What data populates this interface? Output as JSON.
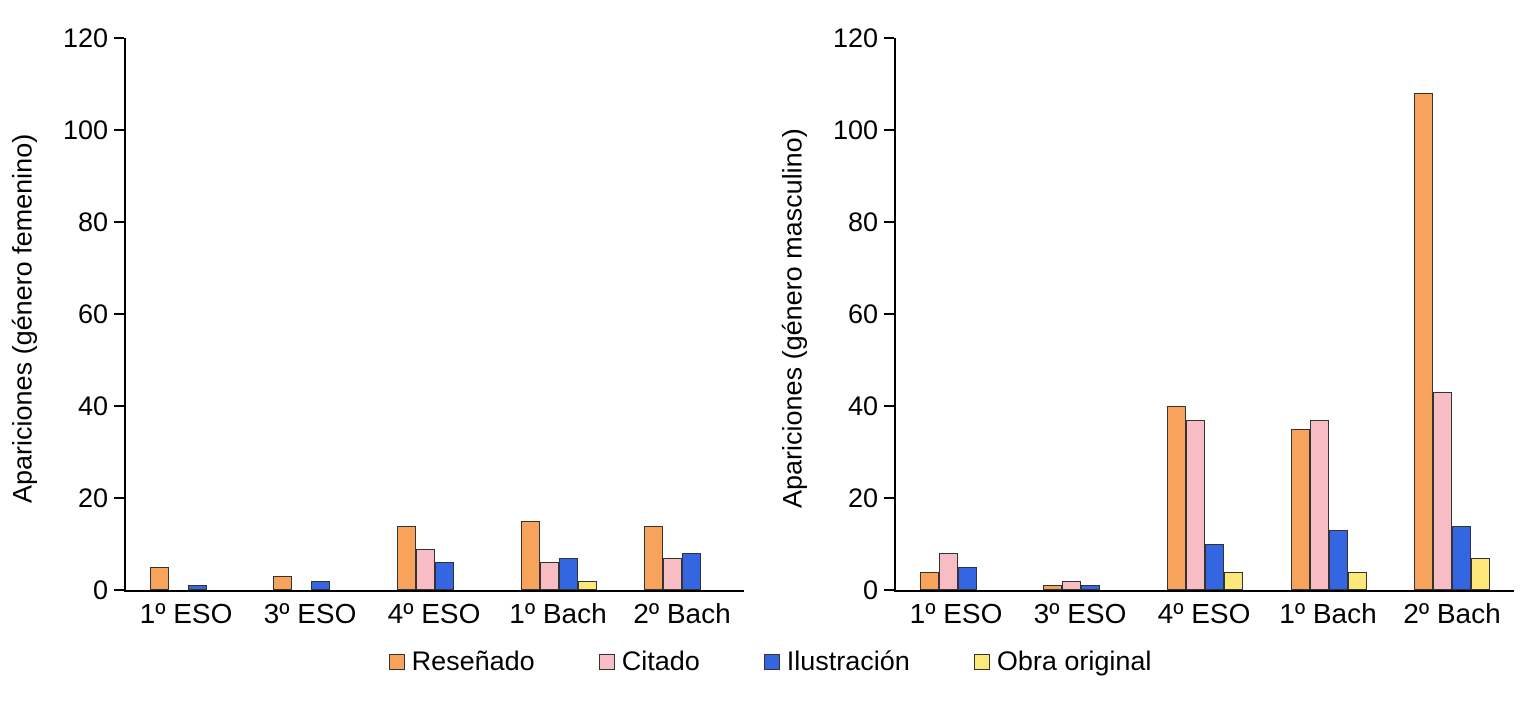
{
  "legend": [
    {
      "label": "Reseñado",
      "color": "#F7A35C"
    },
    {
      "label": "Citado",
      "color": "#F8BDC4"
    },
    {
      "label": "Ilustración",
      "color": "#3366E0"
    },
    {
      "label": "Obra original",
      "color": "#FCE878"
    }
  ],
  "chart_data": [
    {
      "type": "bar",
      "ylabel": "Apariciones (género femenino)",
      "xlabel": "",
      "categories": [
        "1º ESO",
        "3º ESO",
        "4º ESO",
        "1º Bach",
        "2º Bach"
      ],
      "ylim": [
        0,
        120
      ],
      "yticks": [
        0,
        20,
        40,
        60,
        80,
        100,
        120
      ],
      "grid": false,
      "legend_position": "bottom",
      "series": [
        {
          "name": "Reseñado",
          "color": "#F7A35C",
          "values": [
            5,
            3,
            14,
            15,
            14
          ]
        },
        {
          "name": "Citado",
          "color": "#F8BDC4",
          "values": [
            0,
            0,
            9,
            6,
            7
          ]
        },
        {
          "name": "Ilustración",
          "color": "#3366E0",
          "values": [
            1,
            2,
            6,
            7,
            8
          ]
        },
        {
          "name": "Obra original",
          "color": "#FCE878",
          "values": [
            0,
            0,
            0,
            2,
            0
          ]
        }
      ]
    },
    {
      "type": "bar",
      "ylabel": "Apariciones (género masculino)",
      "xlabel": "",
      "categories": [
        "1º ESO",
        "3º ESO",
        "4º ESO",
        "1º Bach",
        "2º Bach"
      ],
      "ylim": [
        0,
        120
      ],
      "yticks": [
        0,
        20,
        40,
        60,
        80,
        100,
        120
      ],
      "grid": false,
      "legend_position": "bottom",
      "series": [
        {
          "name": "Reseñado",
          "color": "#F7A35C",
          "values": [
            4,
            1,
            40,
            35,
            108
          ]
        },
        {
          "name": "Citado",
          "color": "#F8BDC4",
          "values": [
            8,
            2,
            37,
            37,
            43
          ]
        },
        {
          "name": "Ilustración",
          "color": "#3366E0",
          "values": [
            5,
            1,
            10,
            13,
            14
          ]
        },
        {
          "name": "Obra original",
          "color": "#FCE878",
          "values": [
            0,
            0,
            4,
            4,
            7
          ]
        }
      ]
    }
  ]
}
